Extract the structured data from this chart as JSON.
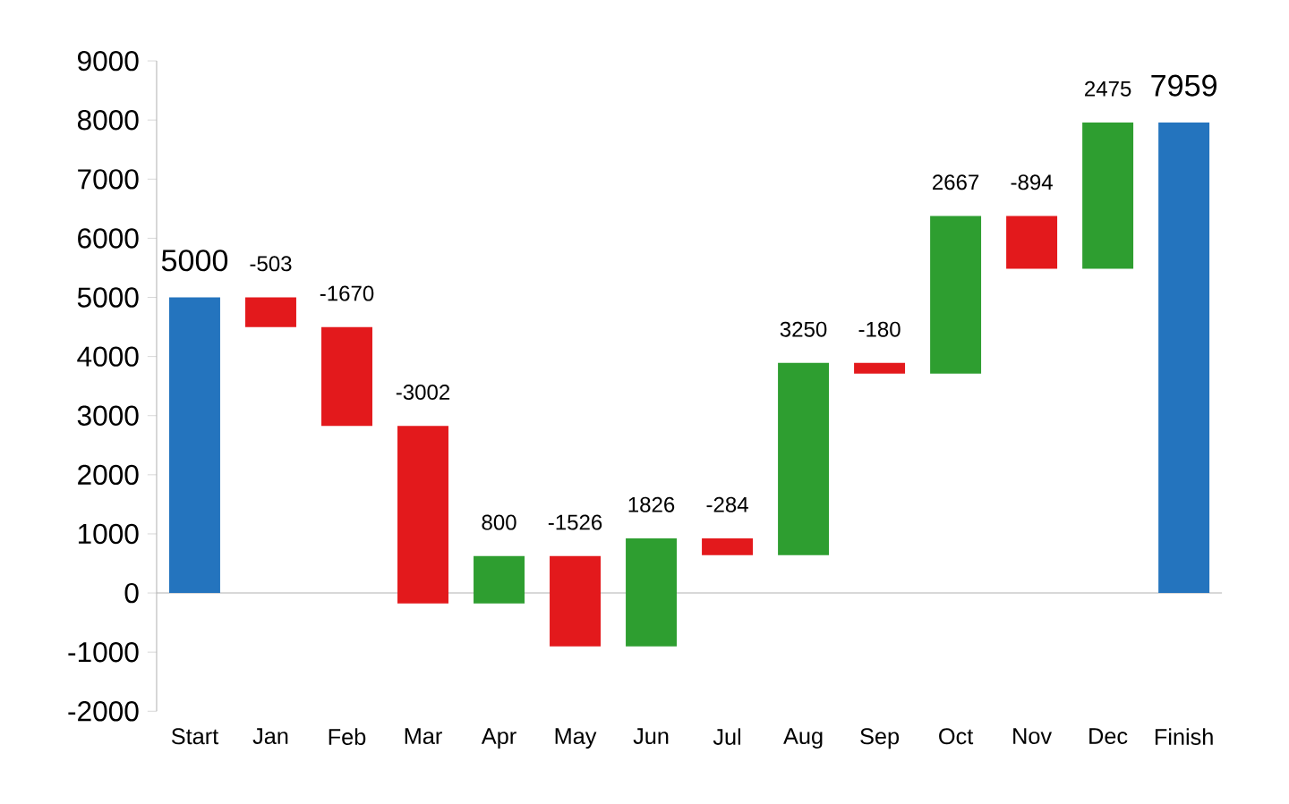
{
  "chart_data": {
    "type": "bar",
    "categories": [
      "Start",
      "Jan",
      "Feb",
      "Mar",
      "Apr",
      "May",
      "Jun",
      "Jul",
      "Aug",
      "Sep",
      "Oct",
      "Nov",
      "Dec",
      "Finish"
    ],
    "values": [
      5000,
      -503,
      -1670,
      -3002,
      800,
      -1526,
      1826,
      -284,
      3250,
      -180,
      2667,
      -894,
      2475,
      7959
    ],
    "base": [
      0,
      5000,
      4497,
      2827,
      -175,
      625,
      -901,
      925,
      641,
      3891,
      3711,
      6378,
      5484,
      0
    ],
    "colors": [
      "#2474be",
      "#e3191c",
      "#e3191c",
      "#e3191c",
      "#2e9e30",
      "#e3191c",
      "#2e9e30",
      "#e3191c",
      "#2e9e30",
      "#e3191c",
      "#2e9e30",
      "#e3191c",
      "#2e9e30",
      "#2474be"
    ],
    "ylim": [
      -2000,
      9000
    ],
    "yticks": [
      -2000,
      -1000,
      0,
      1000,
      2000,
      3000,
      4000,
      5000,
      6000,
      7000,
      8000,
      9000
    ],
    "data_labels": true
  }
}
